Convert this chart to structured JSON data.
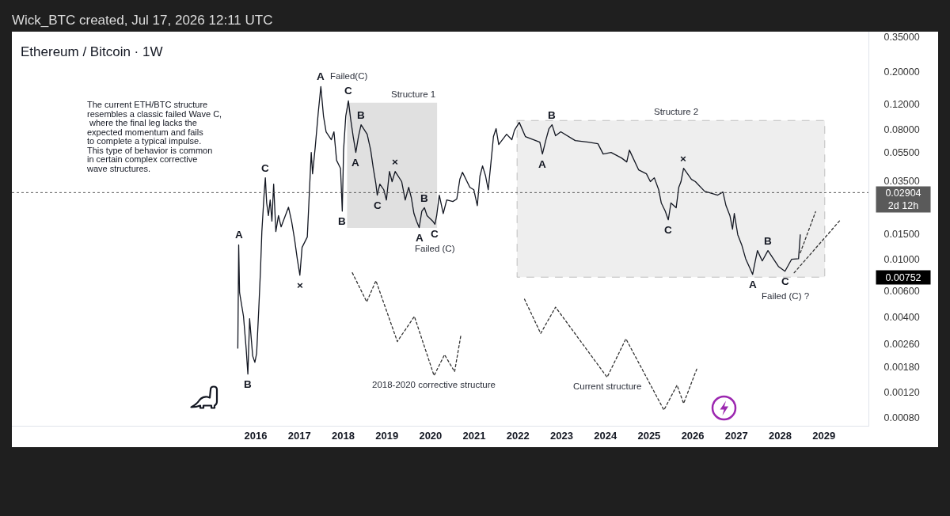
{
  "chart_data": {
    "type": "line",
    "title": "Ethereum / Bitcoin · 1W",
    "annotations": [
      "Wick_BTC created, Jul 17, 2026 12:11 UTC",
      "The current ETH/BTC structure\nresembles a classic failed Wave C,\n where the final leg lacks the\nexpected momentum and fails\nto complete a typical impulse.\nThis type of behavior is common\nin certain complex corrective\nwave structures.",
      {
        "text": "A",
        "x": 2015.61,
        "y": 0.0126
      },
      {
        "text": "B",
        "x": 2015.82,
        "y": 0.0016
      },
      {
        "text": "C",
        "x": 2016.22,
        "y": 0.0368
      },
      {
        "text": "×",
        "x": 2017.01,
        "y": 0.00776
      },
      {
        "text": "A",
        "x": 2017.49,
        "y": 0.158
      },
      {
        "text": "B",
        "x": 2017.98,
        "y": 0.0216
      },
      {
        "text": "C",
        "x": 2018.12,
        "y": 0.126
      },
      {
        "text": "Failed(C)",
        "x": 2018.12,
        "y": 0.126
      },
      {
        "text": "B",
        "x": 2018.41,
        "y": 0.0859
      },
      {
        "text": "A",
        "x": 2018.29,
        "y": 0.0552
      },
      {
        "text": "Structure 1",
        "x": 2019.61,
        "y": 0.122
      },
      {
        "text": "×",
        "x": 2019.19,
        "y": 0.0407
      },
      {
        "text": "C",
        "x": 2018.78,
        "y": 0.0279
      },
      {
        "text": "B",
        "x": 2019.86,
        "y": 0.0228
      },
      {
        "text": "A",
        "x": 2019.74,
        "y": 0.0166
      },
      {
        "text": "C",
        "x": 2020.1,
        "y": 0.0175
      },
      {
        "text": "Failed (C)",
        "x": 2020.1,
        "y": 0.0175
      },
      {
        "text": "2018-2020 corrective structure",
        "x": 2020.08,
        "y": 0.00156
      },
      {
        "text": "Structure 2",
        "x": 2025.61,
        "y": 0.0919
      },
      {
        "text": "B",
        "x": 2022.78,
        "y": 0.0859
      },
      {
        "text": "A",
        "x": 2022.56,
        "y": 0.0538
      },
      {
        "text": "×",
        "x": 2025.79,
        "y": 0.0428
      },
      {
        "text": "C",
        "x": 2025.44,
        "y": 0.0188
      },
      {
        "text": "B",
        "x": 2027.72,
        "y": 0.0115
      },
      {
        "text": "A",
        "x": 2027.37,
        "y": 0.00786
      },
      {
        "text": "C",
        "x": 2028.11,
        "y": 0.00827
      },
      {
        "text": "Failed (C) ?",
        "x": 2028.11,
        "y": 0.00827
      },
      {
        "text": "Current structure",
        "x": 2024.04,
        "y": 0.00152
      }
    ],
    "series": [
      {
        "type": "area",
        "x": [
          2018.09,
          2020.15
        ],
        "values": [
          null,
          null
        ],
        "lower": [
          0.0165,
          0.0165
        ],
        "upper": [
          0.122,
          0.122
        ],
        "color": "#e0e0e0"
      },
      {
        "type": "area",
        "x": [
          2021.98,
          2029.02
        ],
        "values": [
          null,
          null
        ],
        "lower": [
          0.00752,
          0.00752
        ],
        "upper": [
          0.0919,
          0.0919
        ],
        "color": "#eeeeee",
        "line_style": "dashed"
      },
      {
        "x": [
          2018.21,
          2018.54,
          2018.75,
          2019.24,
          2019.63,
          2020.08,
          2020.32,
          2020.55,
          2020.69
        ],
        "values": [
          0.00807,
          0.00507,
          0.00711,
          0.00269,
          0.00402,
          0.00156,
          0.00218,
          0.00166,
          0.00293
        ],
        "color": "#333333",
        "line_style": "dotted"
      },
      {
        "x": [
          2022.15,
          2022.52,
          2022.86,
          2024.04,
          2024.47,
          2025.34,
          2025.64,
          2025.79,
          2026.09
        ],
        "values": [
          0.00529,
          0.00306,
          0.00466,
          0.00152,
          0.00281,
          0.0009,
          0.00134,
          0.001,
          0.00173
        ],
        "color": "#333333",
        "line_style": "dotted"
      },
      {
        "x": [
          2028.46,
          2028.81
        ],
        "values": [
          0.0111,
          0.0214
        ],
        "color": "#333333",
        "line_style": "dotted"
      },
      {
        "x": [
          2028.32,
          2029.38
        ],
        "values": [
          0.00807,
          0.0188
        ],
        "color": "#333333",
        "line_style": "dotted"
      },
      {
        "color": "#131722",
        "x": [
          2015.59,
          2015.61,
          2015.63,
          2015.72,
          2015.78,
          2015.82,
          2015.86,
          2015.93,
          2015.98,
          2016.02,
          2016.07,
          2016.11,
          2016.14,
          2016.19,
          2016.22,
          2016.25,
          2016.29,
          2016.33,
          2016.37,
          2016.41,
          2016.46,
          2016.52,
          2016.58,
          2016.75,
          2016.82,
          2016.89,
          2016.95,
          2017.01,
          2017.06,
          2017.18,
          2017.23,
          2017.27,
          2017.3,
          2017.36,
          2017.43,
          2017.49,
          2017.55,
          2017.61,
          2017.73,
          2017.79,
          2017.85,
          2017.94,
          2017.98,
          2018.01,
          2018.06,
          2018.12,
          2018.17,
          2018.23,
          2018.29,
          2018.35,
          2018.41,
          2018.55,
          2018.63,
          2018.69,
          2018.75,
          2018.78,
          2018.84,
          2018.93,
          2018.99,
          2019.06,
          2019.12,
          2019.19,
          2019.34,
          2019.42,
          2019.5,
          2019.56,
          2019.62,
          2019.68,
          2019.74,
          2019.8,
          2019.86,
          2019.92,
          2020.05,
          2020.1,
          2020.14,
          2020.2,
          2020.29,
          2020.37,
          2020.51,
          2020.6,
          2020.67,
          2020.73,
          2020.9,
          2020.99,
          2021.07,
          2021.13,
          2021.19,
          2021.26,
          2021.32,
          2021.38,
          2021.44,
          2021.5,
          2021.56,
          2021.74,
          2021.86,
          2021.92,
          2022.03,
          2022.17,
          2022.5,
          2022.56,
          2022.64,
          2022.71,
          2022.78,
          2022.86,
          2022.98,
          2023.31,
          2023.61,
          2023.83,
          2023.95,
          2024.13,
          2024.37,
          2024.49,
          2024.55,
          2024.76,
          2024.94,
          2025.03,
          2025.12,
          2025.22,
          2025.28,
          2025.37,
          2025.44,
          2025.5,
          2025.62,
          2025.68,
          2025.73,
          2025.79,
          2025.88,
          2025.97,
          2026.06,
          2026.27,
          2026.57,
          2026.69,
          2026.76,
          2026.85,
          2026.91,
          2026.95,
          2027.03,
          2027.12,
          2027.21,
          2027.29,
          2027.37,
          2027.42,
          2027.48,
          2027.59,
          2027.72,
          2027.96,
          2028.11,
          2028.26,
          2028.42,
          2028.46
        ],
        "values": [
          0.00242,
          0.0126,
          0.00588,
          0.00402,
          0.00242,
          0.0016,
          0.00387,
          0.00214,
          0.00193,
          0.00222,
          0.00456,
          0.00859,
          0.0156,
          0.0279,
          0.0368,
          0.0246,
          0.0201,
          0.0258,
          0.0184,
          0.0333,
          0.0156,
          0.0201,
          0.0168,
          0.023,
          0.0184,
          0.0137,
          0.0101,
          0.00776,
          0.0121,
          0.0143,
          0.0304,
          0.0552,
          0.0392,
          0.0595,
          0.104,
          0.158,
          0.0988,
          0.0767,
          0.0676,
          0.0767,
          0.0486,
          0.0428,
          0.0216,
          0.0573,
          0.0988,
          0.126,
          0.0951,
          0.0711,
          0.0552,
          0.0711,
          0.0859,
          0.0738,
          0.0573,
          0.0428,
          0.0333,
          0.0279,
          0.0333,
          0.0304,
          0.0258,
          0.0407,
          0.0346,
          0.0407,
          0.0346,
          0.0258,
          0.0316,
          0.0268,
          0.0208,
          0.0184,
          0.0166,
          0.0216,
          0.0228,
          0.0201,
          0.0184,
          0.0175,
          0.0201,
          0.0279,
          0.0208,
          0.0258,
          0.0252,
          0.0262,
          0.0359,
          0.0402,
          0.0316,
          0.0304,
          0.0236,
          0.0378,
          0.0445,
          0.0378,
          0.0304,
          0.0462,
          0.0711,
          0.0807,
          0.0626,
          0.0738,
          0.0676,
          0.0786,
          0.0892,
          0.0711,
          0.065,
          0.0538,
          0.0676,
          0.0807,
          0.0859,
          0.072,
          0.0767,
          0.0667,
          0.065,
          0.0634,
          0.0538,
          0.0552,
          0.0505,
          0.0474,
          0.0573,
          0.0418,
          0.0392,
          0.0346,
          0.0368,
          0.0304,
          0.0246,
          0.0216,
          0.0188,
          0.0246,
          0.0228,
          0.0316,
          0.0346,
          0.0428,
          0.0392,
          0.0359,
          0.0346,
          0.0297,
          0.0279,
          0.0293,
          0.0236,
          0.0201,
          0.0162,
          0.0208,
          0.0148,
          0.0126,
          0.0101,
          0.00892,
          0.00786,
          0.00939,
          0.0115,
          0.00975,
          0.0115,
          0.00892,
          0.00827,
          0.01,
          0.0101,
          0.0148
        ]
      }
    ],
    "xlim": [
      2010.42,
      2030.02
    ],
    "xticks": [
      2016,
      2017,
      2018,
      2019,
      2020,
      2021,
      2022,
      2023,
      2024,
      2025,
      2026,
      2027,
      2028,
      2029
    ],
    "ylim": [
      0.0007,
      0.38
    ],
    "yticks": [
      {
        "value": 0.35,
        "label": "0.35000"
      },
      {
        "value": 0.2,
        "label": "0.20000"
      },
      {
        "value": 0.12,
        "label": "0.12000"
      },
      {
        "value": 0.08,
        "label": "0.08000"
      },
      {
        "value": 0.055,
        "label": "0.05500"
      },
      {
        "value": 0.035,
        "label": "0.03500"
      },
      {
        "value": 0.015,
        "label": "0.01500"
      },
      {
        "value": 0.01,
        "label": "0.01000"
      },
      {
        "value": 0.00752,
        "label": "0.00752"
      },
      {
        "value": 0.006,
        "label": "0.00600"
      },
      {
        "value": 0.004,
        "label": "0.00400"
      },
      {
        "value": 0.0026,
        "label": "0.00260"
      },
      {
        "value": 0.0018,
        "label": "0.00180"
      },
      {
        "value": 0.0012,
        "label": "0.00120"
      },
      {
        "value": 0.0008,
        "label": "0.00080"
      }
    ],
    "log": true,
    "ref_lines": [
      {
        "axis": "y",
        "value": 0.02904,
        "label": "0.02904\n2d 12h",
        "color": "#5a5a5a",
        "line_style": "dotted"
      }
    ]
  }
}
